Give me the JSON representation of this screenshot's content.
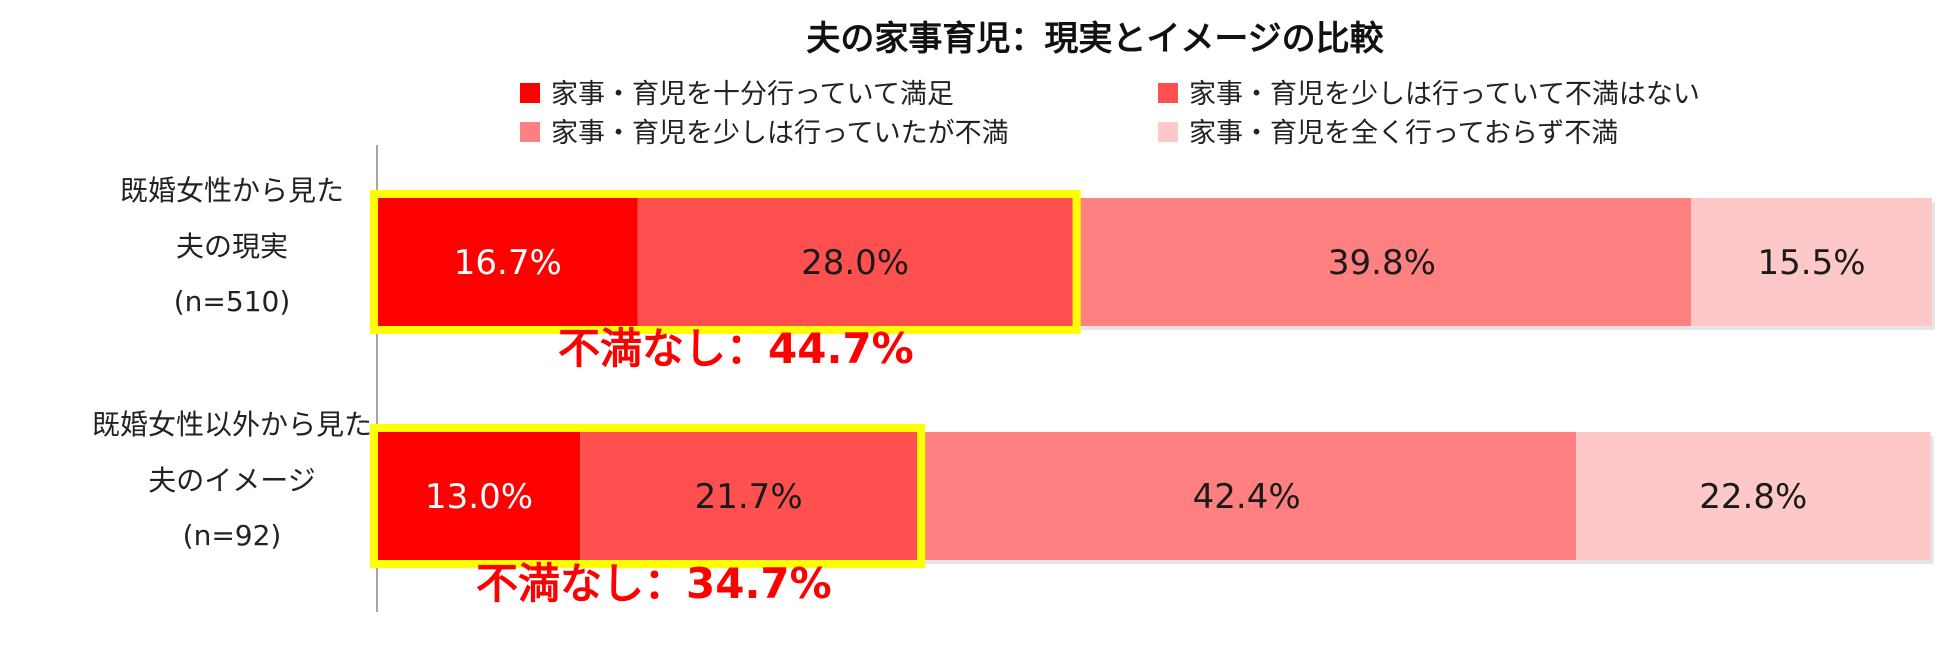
{
  "chart_data": {
    "type": "bar",
    "orientation": "horizontal",
    "stacked": true,
    "percent_stacked": true,
    "title": "夫の家事育児：現実とイメージの比較",
    "xlabel": "",
    "ylabel": "",
    "xlim": [
      0,
      100
    ],
    "grid": false,
    "legend_position": "top",
    "categories": [
      {
        "lines": [
          "既婚女性から見た",
          "夫の現実",
          "(n=510)"
        ]
      },
      {
        "lines": [
          "既婚女性以外から見た",
          "夫のイメージ",
          "(n=92)"
        ]
      }
    ],
    "series": [
      {
        "name": "家事・育児を十分行っていて満足",
        "color": "#ff0000",
        "label_color": "#ffffff",
        "values": [
          16.7,
          13.0
        ],
        "labels": [
          "16.7%",
          "13.0%"
        ]
      },
      {
        "name": "家事・育児を少しは行っていて不満はない",
        "color": "#ff5050",
        "label_color": "#1a1a1a",
        "values": [
          28.0,
          21.7
        ],
        "labels": [
          "28.0%",
          "21.7%"
        ]
      },
      {
        "name": "家事・育児を少しは行っていたが不満",
        "color": "#ff8080",
        "label_color": "#1a1a1a",
        "values": [
          39.8,
          42.4
        ],
        "labels": [
          "39.8%",
          "42.4%"
        ]
      },
      {
        "name": "家事・育児を全く行っておらず不満",
        "color": "#ffc8c8",
        "label_color": "#1a1a1a",
        "values": [
          15.5,
          22.8
        ],
        "labels": [
          "15.5%",
          "22.8%"
        ]
      }
    ],
    "annotations": [
      {
        "text": "不満なし：44.7%",
        "bar_index": 0,
        "value": 44.7,
        "color": "#ff0000"
      },
      {
        "text": "不満なし：34.7%",
        "bar_index": 1,
        "value": 34.7,
        "color": "#ff0000"
      }
    ],
    "highlight": {
      "color": "#ffff00",
      "spans_series": [
        0,
        1
      ]
    },
    "axis_line_color": "#888888"
  }
}
